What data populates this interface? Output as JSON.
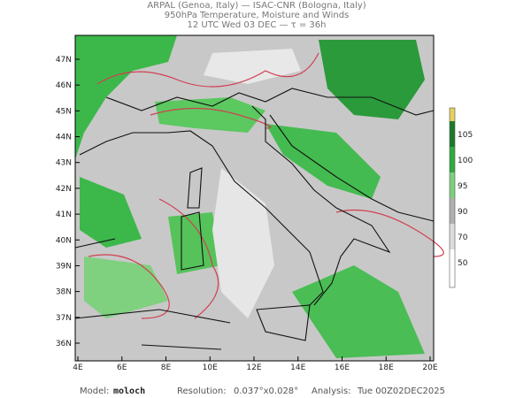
{
  "header": {
    "lines": [
      "ARPAL (Genoa, Italy)  —  ISAC-CNR (Bologna, Italy)",
      "950hPa Temperature, Moisture and Winds",
      "12 UTC Wed 03 DEC  —  τ = 36h"
    ]
  },
  "map": {
    "lon_labels": [
      "4E",
      "6E",
      "8E",
      "10E",
      "12E",
      "14E",
      "16E",
      "18E",
      "20E"
    ],
    "lat_labels": [
      "47N",
      "46N",
      "45N",
      "44N",
      "43N",
      "42N",
      "41N",
      "40N",
      "39N",
      "38N",
      "37N",
      "36N"
    ]
  },
  "colorbar": {
    "labels": [
      "105",
      "100",
      "95",
      "90",
      "70",
      "50"
    ]
  },
  "footer": {
    "model_label": "Model:",
    "model": "moloch",
    "resolution_label": "Resolution:",
    "resolution": "0.037°x0.028°",
    "analysis_label": "Analysis:",
    "analysis": "Tue 00Z02DEC2025"
  }
}
